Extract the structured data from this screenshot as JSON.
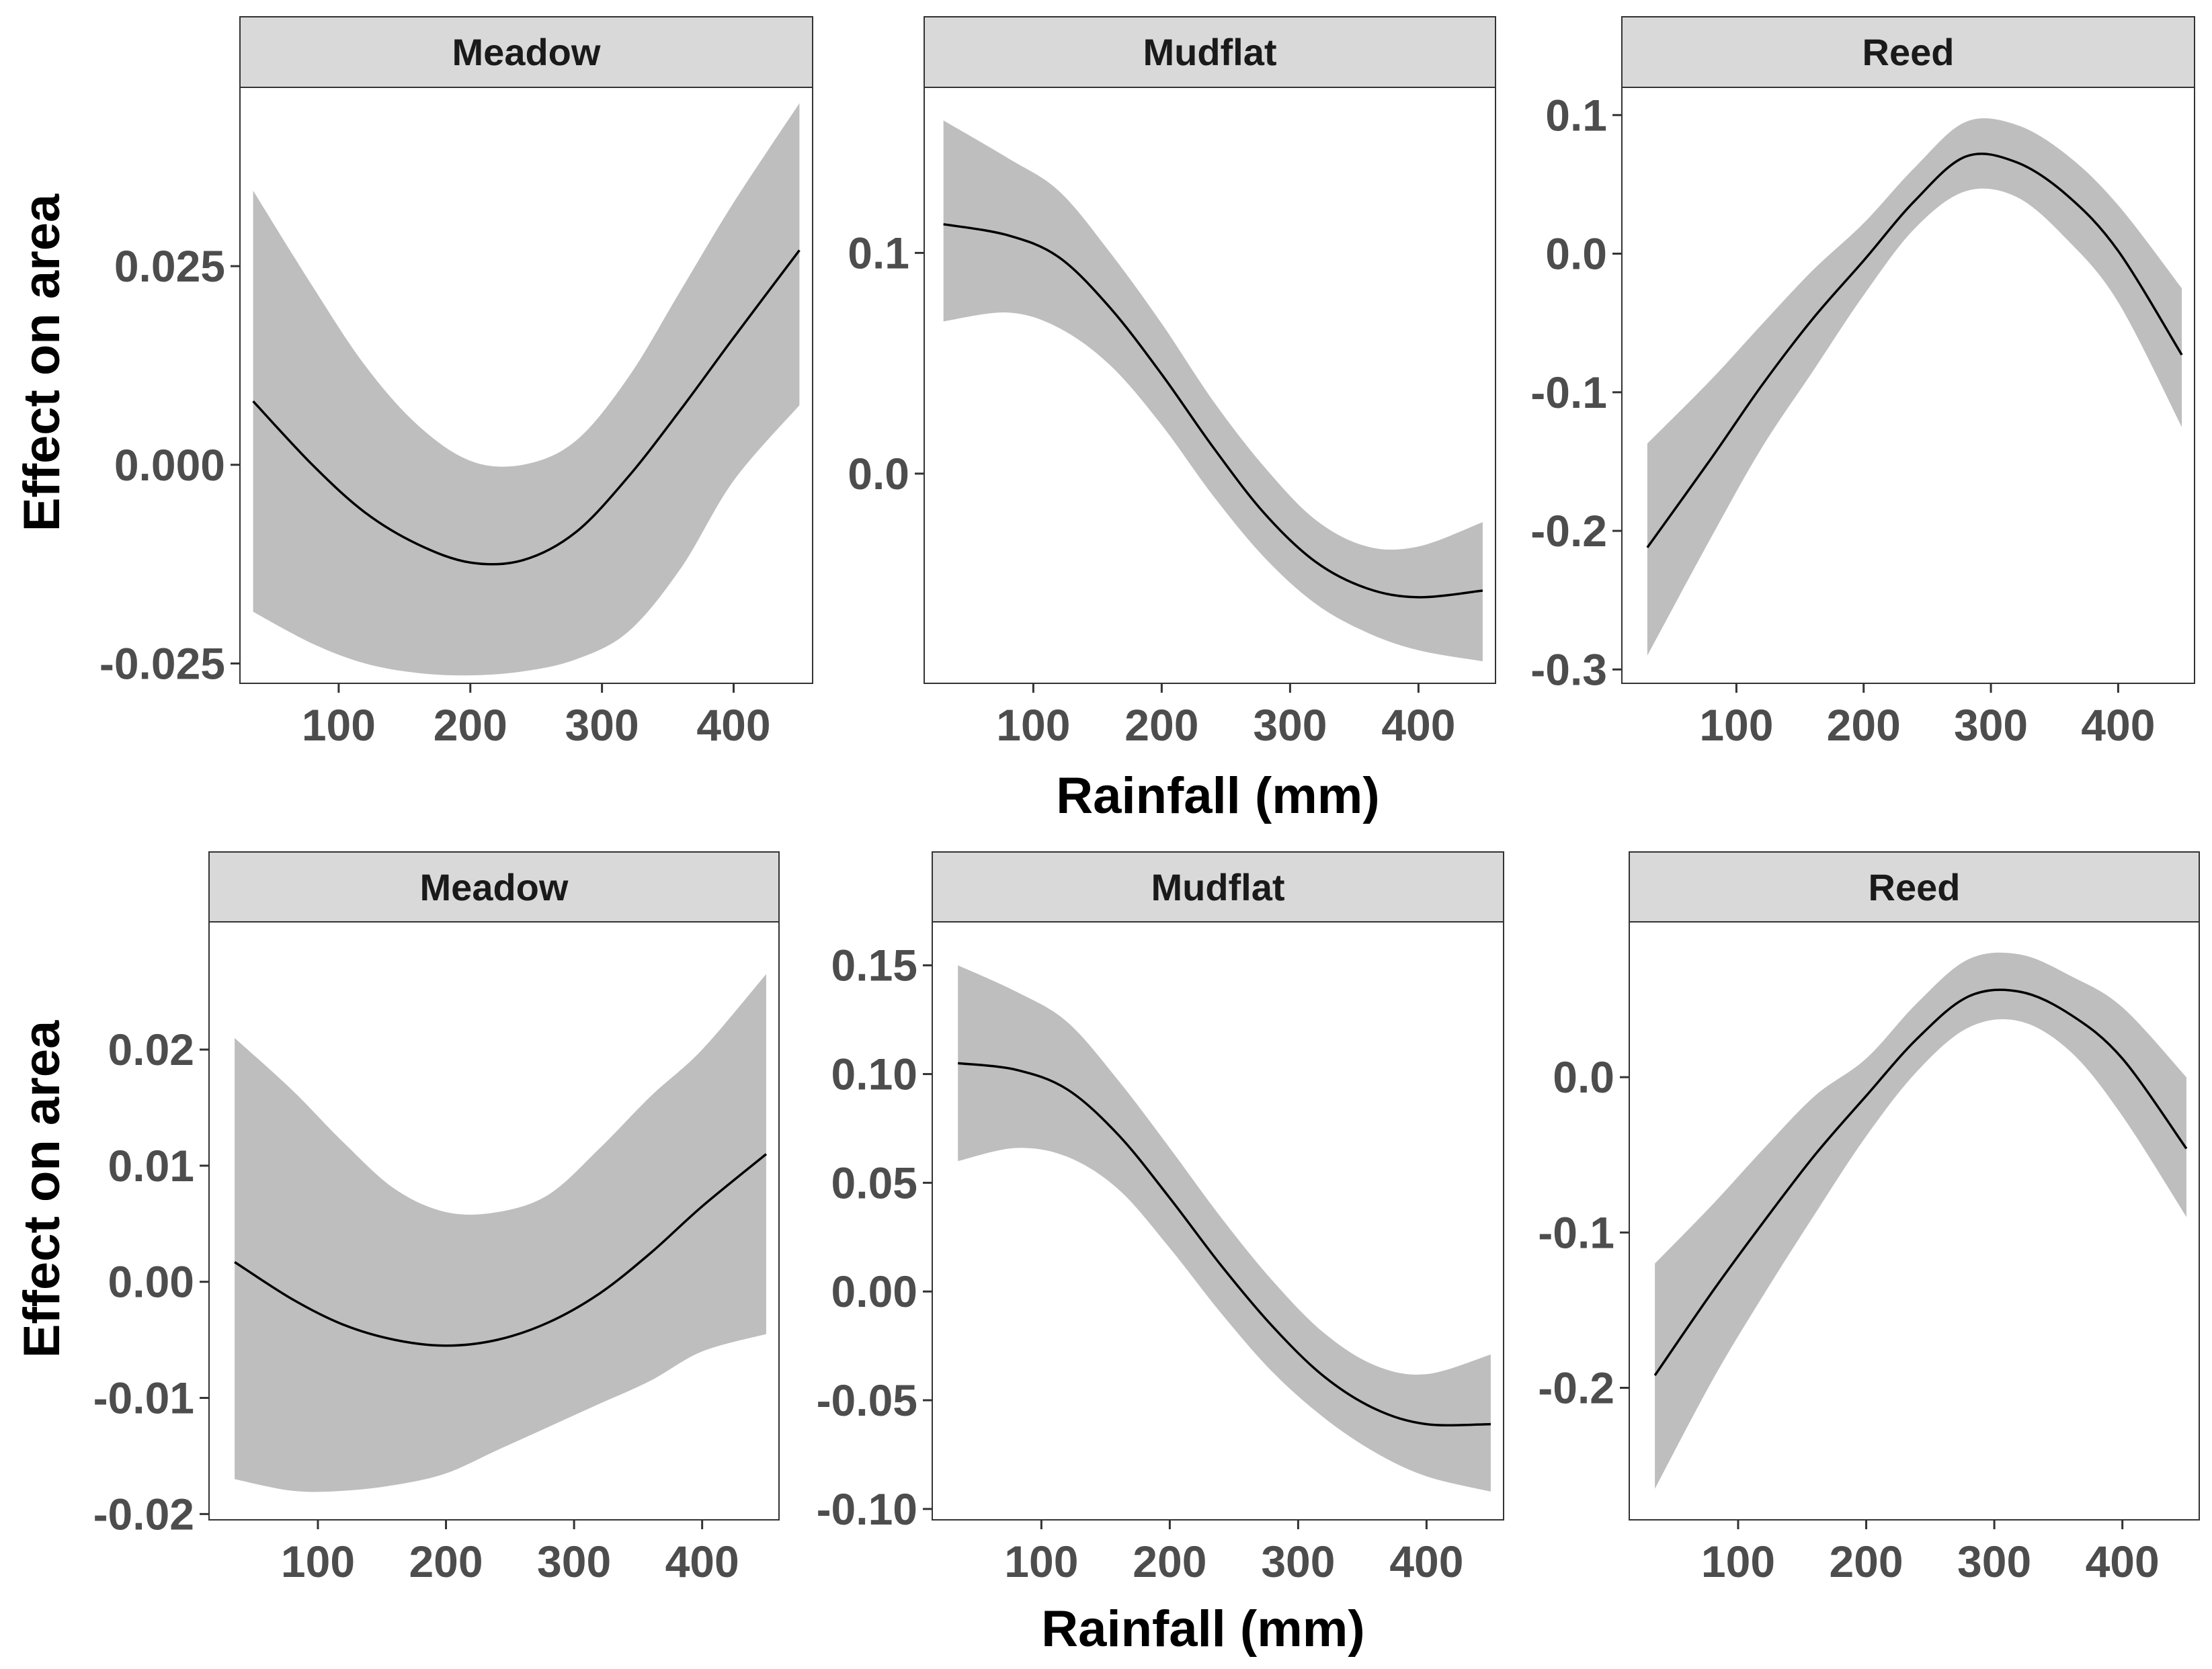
{
  "y_title": "Effect on area",
  "x_title": "Rainfall (mm)",
  "chart_data": [
    {
      "type": "line",
      "title": "Meadow",
      "xlabel": "",
      "ylabel": "Effect on area",
      "xlim": [
        25,
        460
      ],
      "ylim": [
        -0.0275,
        0.0475
      ],
      "x_ticks": [
        100,
        200,
        300,
        400
      ],
      "y_ticks": [
        -0.025,
        0.0,
        0.025
      ],
      "y_tick_labels": [
        "-0.025",
        "0.000",
        "0.025"
      ],
      "x": [
        35,
        80,
        120,
        160,
        200,
        240,
        280,
        320,
        360,
        400,
        450
      ],
      "fit": [
        0.008,
        0.0,
        -0.006,
        -0.01,
        -0.0123,
        -0.012,
        -0.0085,
        -0.0015,
        0.007,
        0.016,
        0.027
      ],
      "lower": [
        -0.0185,
        -0.0225,
        -0.025,
        -0.0262,
        -0.0265,
        -0.026,
        -0.0245,
        -0.021,
        -0.013,
        -0.002,
        0.0075
      ],
      "upper": [
        0.0345,
        0.0225,
        0.0125,
        0.005,
        0.0005,
        0.0,
        0.003,
        0.011,
        0.022,
        0.033,
        0.0455
      ]
    },
    {
      "type": "line",
      "title": "Mudflat",
      "xlabel": "Rainfall (mm)",
      "ylabel": "",
      "xlim": [
        15,
        460
      ],
      "ylim": [
        -0.095,
        0.175
      ],
      "x_ticks": [
        100,
        200,
        300,
        400
      ],
      "y_ticks": [
        0.0,
        0.1
      ],
      "y_tick_labels": [
        "0.0",
        "0.1"
      ],
      "x": [
        30,
        80,
        120,
        160,
        200,
        240,
        280,
        320,
        360,
        400,
        450
      ],
      "fit": [
        0.113,
        0.108,
        0.098,
        0.075,
        0.045,
        0.012,
        -0.018,
        -0.04,
        -0.052,
        -0.056,
        -0.053
      ],
      "lower": [
        0.069,
        0.073,
        0.066,
        0.049,
        0.022,
        -0.01,
        -0.038,
        -0.059,
        -0.072,
        -0.08,
        -0.085
      ],
      "upper": [
        0.16,
        0.143,
        0.128,
        0.1,
        0.068,
        0.033,
        0.003,
        -0.021,
        -0.033,
        -0.033,
        -0.022
      ]
    },
    {
      "type": "line",
      "title": "Reed",
      "xlabel": "",
      "ylabel": "",
      "xlim": [
        10,
        460
      ],
      "ylim": [
        -0.31,
        0.12
      ],
      "x_ticks": [
        100,
        200,
        300,
        400
      ],
      "y_ticks": [
        -0.3,
        -0.2,
        -0.1,
        0.0,
        0.1
      ],
      "y_tick_labels": [
        "-0.3",
        "-0.2",
        "-0.1",
        "0.0",
        "0.1"
      ],
      "x": [
        30,
        80,
        120,
        160,
        200,
        240,
        280,
        320,
        360,
        400,
        450
      ],
      "fit": [
        -0.212,
        -0.148,
        -0.095,
        -0.047,
        -0.005,
        0.038,
        0.07,
        0.066,
        0.042,
        0.002,
        -0.073
      ],
      "lower": [
        -0.29,
        -0.205,
        -0.14,
        -0.085,
        -0.03,
        0.018,
        0.045,
        0.041,
        0.01,
        -0.035,
        -0.125
      ],
      "upper": [
        -0.137,
        -0.091,
        -0.051,
        -0.012,
        0.022,
        0.062,
        0.095,
        0.093,
        0.071,
        0.035,
        -0.025
      ]
    },
    {
      "type": "line",
      "title": "Meadow",
      "xlabel": "",
      "ylabel": "Effect on area",
      "xlim": [
        15,
        460
      ],
      "ylim": [
        -0.0205,
        0.031
      ],
      "x_ticks": [
        100,
        200,
        300,
        400
      ],
      "y_ticks": [
        -0.02,
        -0.01,
        0.0,
        0.01,
        0.02
      ],
      "y_tick_labels": [
        "-0.02",
        "-0.01",
        "0.00",
        "0.01",
        "0.02"
      ],
      "x": [
        35,
        80,
        120,
        160,
        200,
        240,
        280,
        320,
        360,
        400,
        450
      ],
      "fit": [
        0.0017,
        -0.0015,
        -0.0037,
        -0.005,
        -0.0055,
        -0.005,
        -0.0035,
        -0.001,
        0.0025,
        0.0065,
        0.011
      ],
      "lower": [
        -0.017,
        -0.018,
        -0.018,
        -0.0175,
        -0.0165,
        -0.0145,
        -0.0125,
        -0.0105,
        -0.0085,
        -0.006,
        -0.0045
      ],
      "upper": [
        0.021,
        0.0165,
        0.012,
        0.008,
        0.006,
        0.006,
        0.0075,
        0.0115,
        0.016,
        0.02,
        0.0265
      ]
    },
    {
      "type": "line",
      "title": "Mudflat",
      "xlabel": "Rainfall (mm)",
      "ylabel": "",
      "xlim": [
        15,
        460
      ],
      "ylim": [
        -0.105,
        0.17
      ],
      "x_ticks": [
        100,
        200,
        300,
        400
      ],
      "y_ticks": [
        -0.1,
        -0.05,
        0.0,
        0.05,
        0.1,
        0.15
      ],
      "y_tick_labels": [
        "-0.10",
        "-0.05",
        "0.00",
        "0.05",
        "0.10",
        "0.15"
      ],
      "x": [
        35,
        80,
        120,
        160,
        200,
        240,
        280,
        320,
        360,
        400,
        450
      ],
      "fit": [
        0.105,
        0.102,
        0.093,
        0.072,
        0.043,
        0.012,
        -0.016,
        -0.039,
        -0.054,
        -0.061,
        -0.061
      ],
      "lower": [
        0.06,
        0.066,
        0.062,
        0.047,
        0.02,
        -0.01,
        -0.037,
        -0.058,
        -0.074,
        -0.085,
        -0.092
      ],
      "upper": [
        0.15,
        0.138,
        0.124,
        0.097,
        0.066,
        0.034,
        0.005,
        -0.019,
        -0.034,
        -0.038,
        -0.029
      ]
    },
    {
      "type": "line",
      "title": "Reed",
      "xlabel": "",
      "ylabel": "",
      "xlim": [
        15,
        460
      ],
      "ylim": [
        -0.285,
        0.1
      ],
      "x_ticks": [
        100,
        200,
        300,
        400
      ],
      "y_ticks": [
        -0.2,
        -0.1,
        0.0
      ],
      "y_tick_labels": [
        "-0.2",
        "-0.1",
        "0.0"
      ],
      "x": [
        35,
        80,
        120,
        160,
        200,
        240,
        280,
        320,
        360,
        400,
        450
      ],
      "fit": [
        -0.192,
        -0.138,
        -0.093,
        -0.05,
        -0.012,
        0.025,
        0.052,
        0.055,
        0.04,
        0.012,
        -0.046
      ],
      "lower": [
        -0.265,
        -0.195,
        -0.14,
        -0.088,
        -0.038,
        0.004,
        0.032,
        0.036,
        0.016,
        -0.025,
        -0.09
      ],
      "upper": [
        -0.12,
        -0.082,
        -0.046,
        -0.012,
        0.012,
        0.048,
        0.076,
        0.079,
        0.065,
        0.045,
        0.0
      ]
    }
  ]
}
